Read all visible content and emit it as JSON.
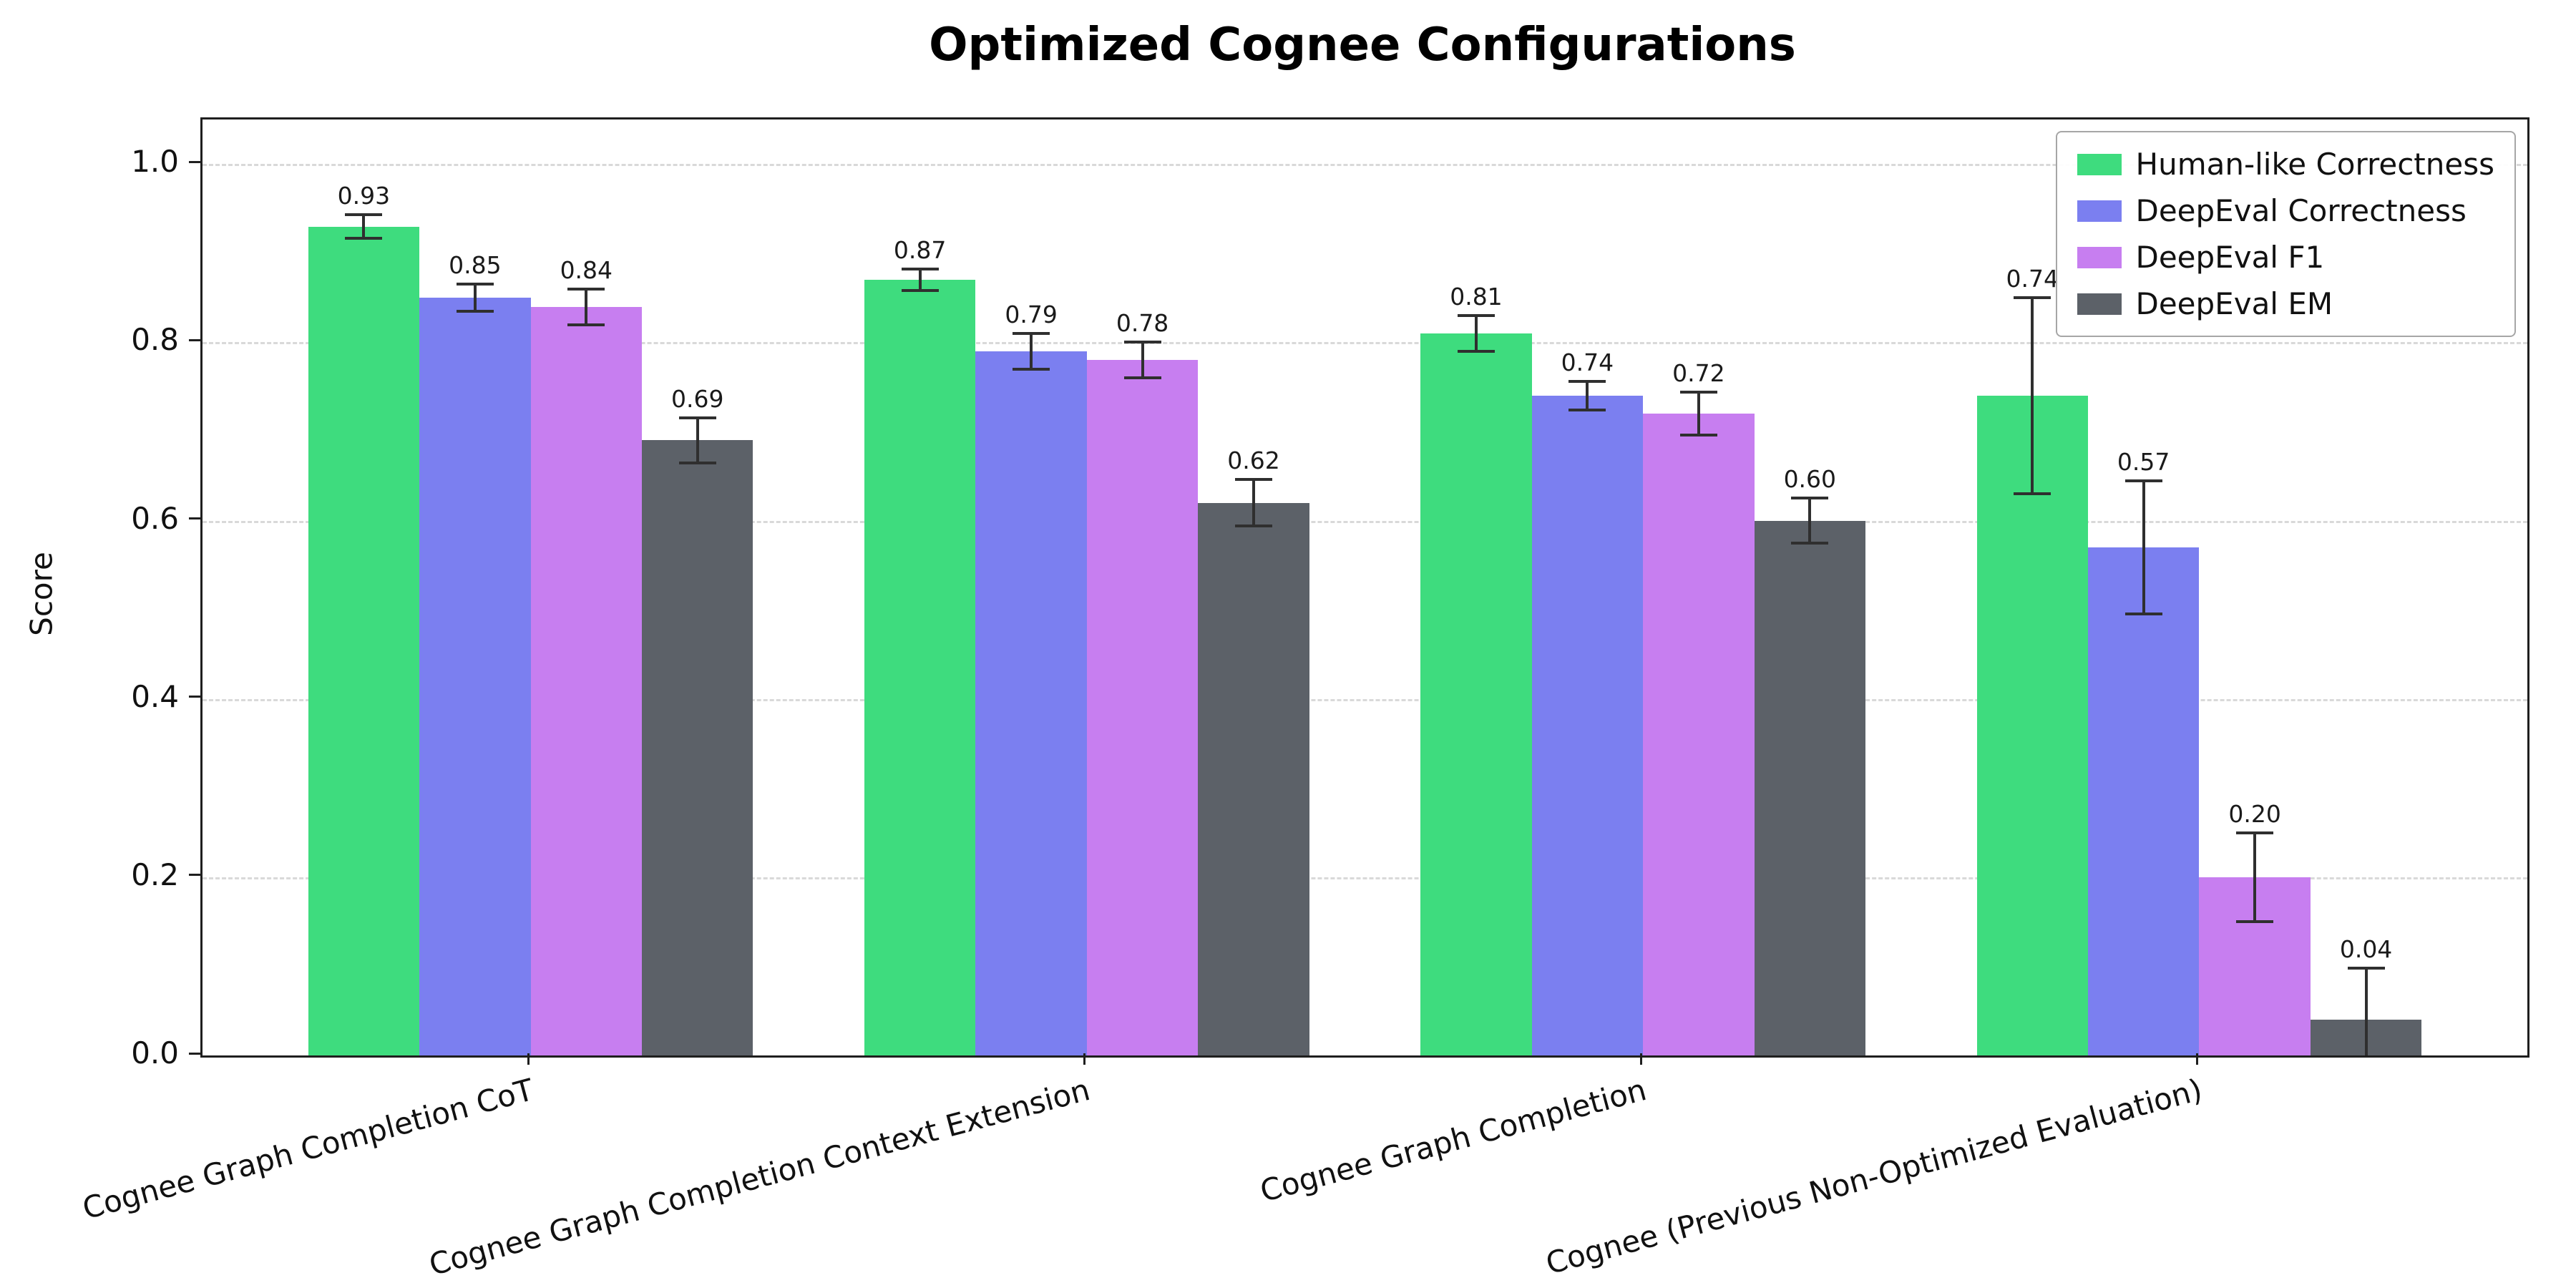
{
  "chart_data": {
    "type": "bar",
    "title": "Optimized Cognee Configurations",
    "ylabel": "Score",
    "xlabel": "",
    "ylim": [
      0,
      1.05
    ],
    "yticks": [
      0.0,
      0.2,
      0.4,
      0.6,
      0.8,
      1.0
    ],
    "grid": "horizontal-dashed",
    "legend_position": "upper right",
    "categories": [
      "Cognee Graph Completion CoT",
      "Cognee Graph Completion Context Extension",
      "Cognee Graph Completion",
      "Cognee (Previous Non-Optimized Evaluation)"
    ],
    "series": [
      {
        "name": "Human-like Correctness",
        "color": "#3edc7e",
        "values": [
          0.93,
          0.87,
          0.81,
          0.74
        ],
        "errors": [
          0.013,
          0.012,
          0.02,
          0.11
        ]
      },
      {
        "name": "DeepEval Correctness",
        "color": "#7b7ff0",
        "values": [
          0.85,
          0.79,
          0.74,
          0.57
        ],
        "errors": [
          0.015,
          0.02,
          0.016,
          0.075
        ]
      },
      {
        "name": "DeepEval F1",
        "color": "#c77ef0",
        "values": [
          0.84,
          0.78,
          0.72,
          0.2
        ],
        "errors": [
          0.02,
          0.02,
          0.024,
          0.05
        ]
      },
      {
        "name": "DeepEval EM",
        "color": "#5c6168",
        "values": [
          0.69,
          0.62,
          0.6,
          0.04
        ],
        "errors": [
          0.025,
          0.026,
          0.025,
          0.058
        ]
      }
    ],
    "colors": {
      "error_bar": "#2f2f2f",
      "gridline": "#d9d9d9",
      "axis": "#1f1f1f",
      "text": "#111111"
    }
  }
}
